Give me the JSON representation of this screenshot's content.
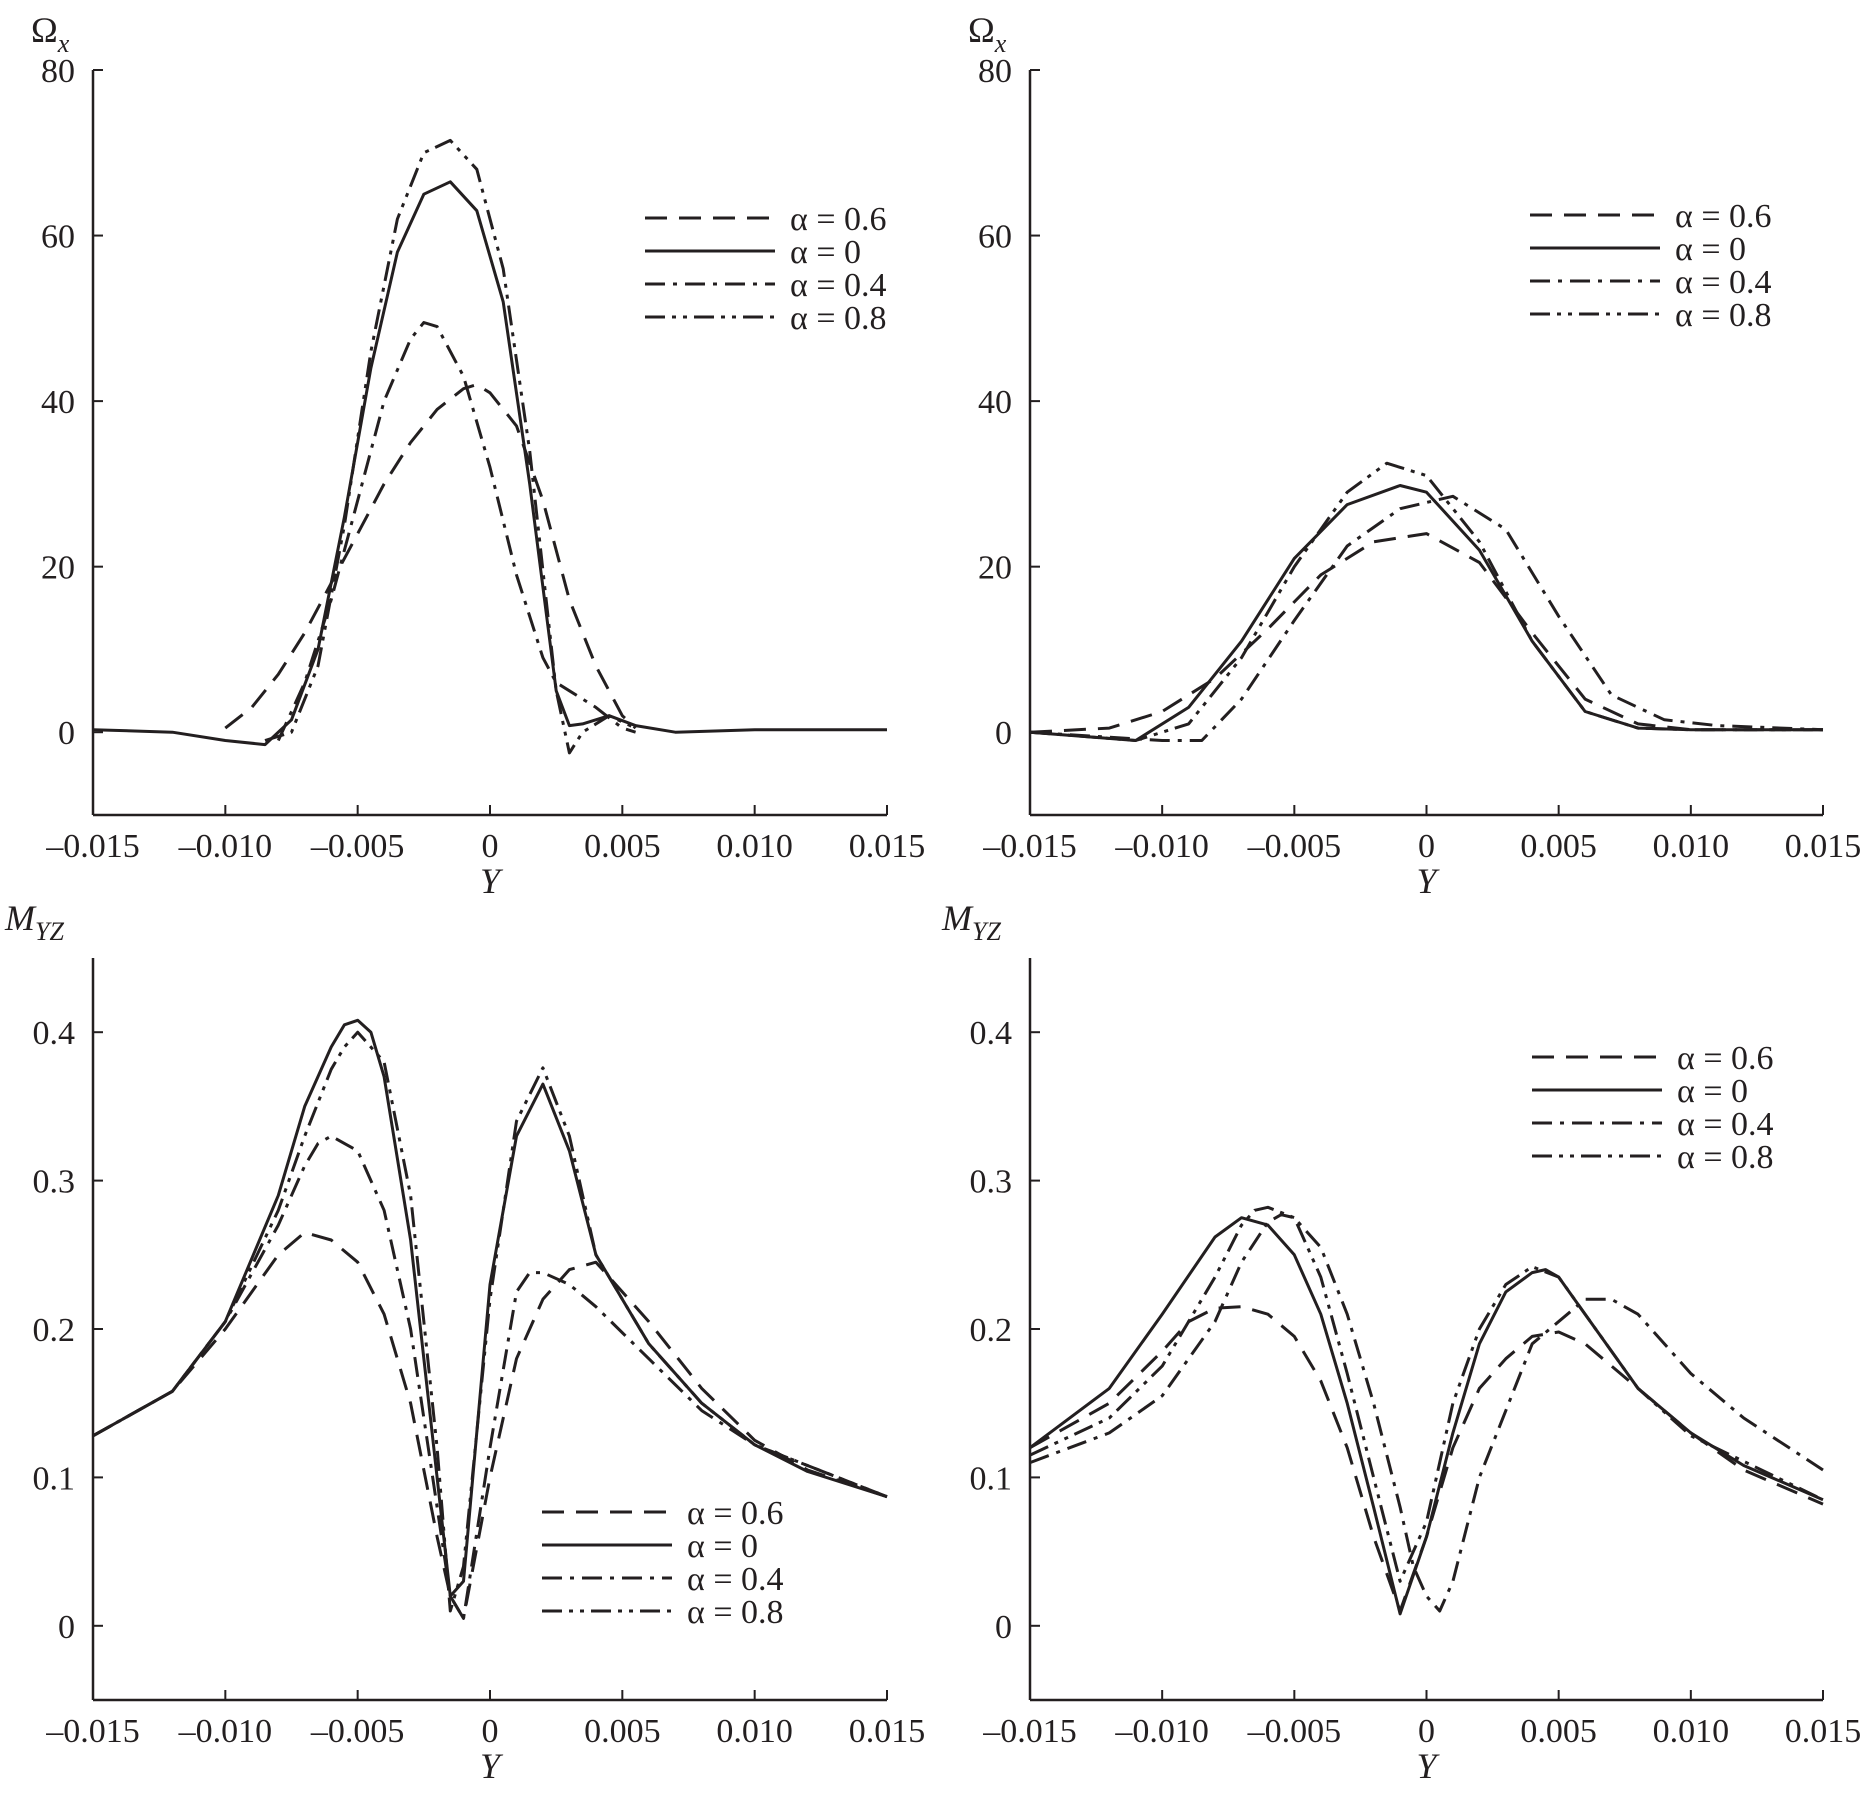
{
  "colors": {
    "ink": "#231f20",
    "background": "#ffffff"
  },
  "chart_data": [
    {
      "type": "line",
      "panel": "top-left",
      "title": "",
      "xlabel": "Y",
      "ylabel": {
        "base": "Ω",
        "sub": "x"
      },
      "xlim": [
        -0.015,
        0.015
      ],
      "ylim": [
        -10,
        80
      ],
      "xticks": [
        -0.015,
        -0.01,
        -0.005,
        0,
        0.005,
        0.01,
        0.015
      ],
      "xtick_labels": [
        "–0.015",
        "–0.010",
        "–0.005",
        "0",
        "0.005",
        "0.010",
        "0.015"
      ],
      "yticks": [
        0,
        20,
        40,
        60,
        80
      ],
      "ytick_labels": [
        "0",
        "20",
        "40",
        "60",
        "80"
      ],
      "legend_position": "top-right",
      "series": [
        {
          "name": "α = 0.6",
          "dash": "dashed",
          "x": [
            -0.01,
            -0.009,
            -0.008,
            -0.007,
            -0.006,
            -0.005,
            -0.004,
            -0.003,
            -0.002,
            -0.001,
            -0.0005,
            0.0,
            0.001,
            0.002,
            0.003,
            0.004,
            0.005,
            0.0055
          ],
          "y": [
            0.5,
            3.0,
            7.0,
            12.0,
            18.0,
            24.0,
            30.0,
            35.0,
            39.0,
            41.5,
            42.0,
            41.0,
            37.0,
            28.0,
            16.0,
            8.0,
            2.0,
            0.5
          ]
        },
        {
          "name": "α = 0",
          "dash": "solid",
          "x": [
            -0.015,
            -0.012,
            -0.01,
            -0.0085,
            -0.0075,
            -0.0065,
            -0.0055,
            -0.0045,
            -0.0035,
            -0.0025,
            -0.0015,
            -0.0005,
            0.0005,
            0.0015,
            0.0025,
            0.003,
            0.0035,
            0.0045,
            0.0055,
            0.007,
            0.01,
            0.015
          ],
          "y": [
            0.3,
            0.0,
            -1.0,
            -1.5,
            1.5,
            10.0,
            26.0,
            44.0,
            58.0,
            65.0,
            66.5,
            63.0,
            52.0,
            30.0,
            5.0,
            0.8,
            1.0,
            2.0,
            0.8,
            0.0,
            0.3,
            0.3
          ]
        },
        {
          "name": "α = 0.4",
          "dash": "dashdot",
          "x": [
            -0.008,
            -0.007,
            -0.006,
            -0.005,
            -0.004,
            -0.003,
            -0.0025,
            -0.002,
            -0.001,
            0.0,
            0.001,
            0.002,
            0.0025,
            0.003,
            0.004,
            0.005,
            0.0055
          ],
          "y": [
            -1.0,
            6.0,
            16.0,
            28.0,
            40.0,
            47.5,
            49.5,
            49.0,
            43.0,
            32.0,
            19.0,
            9.0,
            6.0,
            5.0,
            3.0,
            0.5,
            0.0
          ]
        },
        {
          "name": "α = 0.8",
          "dash": "dashdotdot",
          "x": [
            -0.0085,
            -0.0075,
            -0.0065,
            -0.0055,
            -0.0045,
            -0.0035,
            -0.0025,
            -0.0015,
            -0.0005,
            0.0005,
            0.0015,
            0.0025,
            0.003,
            0.0035,
            0.0045,
            0.0055
          ],
          "y": [
            -1.0,
            0.0,
            8.0,
            25.0,
            46.0,
            62.0,
            70.0,
            71.5,
            68.0,
            56.0,
            34.0,
            5.0,
            -2.5,
            0.0,
            2.0,
            0.5
          ]
        }
      ]
    },
    {
      "type": "line",
      "panel": "top-right",
      "title": "",
      "xlabel": "Y",
      "ylabel": {
        "base": "Ω",
        "sub": "x"
      },
      "xlim": [
        -0.015,
        0.015
      ],
      "ylim": [
        -10,
        80
      ],
      "xticks": [
        -0.015,
        -0.01,
        -0.005,
        0,
        0.005,
        0.01,
        0.015
      ],
      "xtick_labels": [
        "–0.015",
        "–0.010",
        "–0.005",
        "0",
        "0.005",
        "0.010",
        "0.015"
      ],
      "yticks": [
        0,
        20,
        40,
        60,
        80
      ],
      "ytick_labels": [
        "0",
        "20",
        "40",
        "60",
        "80"
      ],
      "legend_position": "top-right",
      "series": [
        {
          "name": "α = 0.6",
          "dash": "dashed",
          "x": [
            -0.015,
            -0.012,
            -0.01,
            -0.008,
            -0.006,
            -0.004,
            -0.002,
            0.0,
            0.002,
            0.004,
            0.006,
            0.008,
            0.01,
            0.015
          ],
          "y": [
            0.0,
            0.5,
            2.5,
            6.5,
            12.5,
            19.0,
            23.0,
            24.0,
            20.5,
            12.0,
            4.0,
            1.0,
            0.3,
            0.3
          ]
        },
        {
          "name": "α = 0",
          "dash": "solid",
          "x": [
            -0.015,
            -0.011,
            -0.009,
            -0.007,
            -0.005,
            -0.003,
            -0.001,
            0.0,
            0.002,
            0.004,
            0.006,
            0.008,
            0.01,
            0.015
          ],
          "y": [
            0.0,
            -1.0,
            3.0,
            11.0,
            21.0,
            27.5,
            29.8,
            29.0,
            22.0,
            11.0,
            2.5,
            0.5,
            0.3,
            0.3
          ]
        },
        {
          "name": "α = 0.4",
          "dash": "dashdot",
          "x": [
            -0.015,
            -0.01,
            -0.0085,
            -0.007,
            -0.005,
            -0.003,
            -0.001,
            0.001,
            0.003,
            0.005,
            0.007,
            0.009,
            0.011,
            0.015
          ],
          "y": [
            0.0,
            -1.0,
            -1.0,
            4.0,
            13.5,
            22.5,
            27.0,
            28.5,
            24.5,
            14.0,
            4.5,
            1.5,
            0.8,
            0.3
          ]
        },
        {
          "name": "α = 0.8",
          "dash": "dashdotdot",
          "x": [
            -0.015,
            -0.011,
            -0.009,
            -0.007,
            -0.005,
            -0.003,
            -0.0015,
            0.0,
            0.002,
            0.004,
            0.006,
            0.008,
            0.01,
            0.015
          ],
          "y": [
            0.0,
            -1.0,
            1.0,
            9.0,
            20.0,
            29.0,
            32.5,
            31.0,
            23.0,
            11.0,
            2.5,
            0.5,
            0.3,
            0.3
          ]
        }
      ]
    },
    {
      "type": "line",
      "panel": "bottom-left",
      "title": "",
      "xlabel": "Y",
      "ylabel": {
        "base": "M",
        "sub": "YZ"
      },
      "xlim": [
        -0.015,
        0.015
      ],
      "ylim": [
        -0.05,
        0.45
      ],
      "xticks": [
        -0.015,
        -0.01,
        -0.005,
        0,
        0.005,
        0.01,
        0.015
      ],
      "xtick_labels": [
        "–0.015",
        "–0.010",
        "–0.005",
        "0",
        "0.005",
        "0.010",
        "0.015"
      ],
      "yticks": [
        0,
        0.1,
        0.2,
        0.3,
        0.4
      ],
      "ytick_labels": [
        "0",
        "0.1",
        "0.2",
        "0.3",
        "0.4"
      ],
      "legend_position": "bottom-right",
      "series": [
        {
          "name": "α = 0.6",
          "dash": "dashed",
          "x": [
            -0.015,
            -0.012,
            -0.01,
            -0.008,
            -0.007,
            -0.006,
            -0.005,
            -0.004,
            -0.003,
            -0.002,
            -0.0015,
            -0.001,
            0.0,
            0.001,
            0.002,
            0.003,
            0.004,
            0.006,
            0.008,
            0.01,
            0.012,
            0.015
          ],
          "y": [
            0.128,
            0.158,
            0.2,
            0.25,
            0.265,
            0.26,
            0.245,
            0.21,
            0.15,
            0.06,
            0.02,
            0.005,
            0.1,
            0.18,
            0.22,
            0.24,
            0.245,
            0.205,
            0.16,
            0.125,
            0.105,
            0.087
          ]
        },
        {
          "name": "α = 0",
          "dash": "solid",
          "x": [
            -0.015,
            -0.012,
            -0.01,
            -0.008,
            -0.007,
            -0.006,
            -0.0055,
            -0.005,
            -0.0045,
            -0.004,
            -0.003,
            -0.002,
            -0.0015,
            -0.001,
            0.0,
            0.001,
            0.002,
            0.003,
            0.004,
            0.006,
            0.008,
            0.01,
            0.012,
            0.015
          ],
          "y": [
            0.128,
            0.158,
            0.205,
            0.29,
            0.35,
            0.39,
            0.405,
            0.408,
            0.4,
            0.37,
            0.26,
            0.1,
            0.02,
            0.03,
            0.23,
            0.33,
            0.365,
            0.32,
            0.25,
            0.19,
            0.15,
            0.122,
            0.104,
            0.087
          ]
        },
        {
          "name": "α = 0.4",
          "dash": "dashdot",
          "x": [
            -0.015,
            -0.012,
            -0.01,
            -0.008,
            -0.007,
            -0.0065,
            -0.006,
            -0.005,
            -0.004,
            -0.003,
            -0.002,
            -0.0015,
            -0.001,
            0.0,
            0.001,
            0.0015,
            0.002,
            0.003,
            0.004,
            0.006,
            0.008,
            0.01,
            0.015
          ],
          "y": [
            0.128,
            0.158,
            0.205,
            0.27,
            0.31,
            0.325,
            0.33,
            0.32,
            0.28,
            0.2,
            0.08,
            0.02,
            0.005,
            0.12,
            0.225,
            0.238,
            0.238,
            0.23,
            0.215,
            0.18,
            0.145,
            0.122,
            0.087
          ]
        },
        {
          "name": "α = 0.8",
          "dash": "dashdotdot",
          "x": [
            -0.015,
            -0.012,
            -0.01,
            -0.008,
            -0.007,
            -0.006,
            -0.0055,
            -0.005,
            -0.004,
            -0.003,
            -0.002,
            -0.0015,
            -0.001,
            0.0,
            0.001,
            0.002,
            0.003,
            0.004,
            0.006,
            0.008,
            0.01,
            0.015
          ],
          "y": [
            0.128,
            0.158,
            0.205,
            0.28,
            0.33,
            0.375,
            0.39,
            0.4,
            0.38,
            0.29,
            0.12,
            0.01,
            0.04,
            0.22,
            0.34,
            0.376,
            0.33,
            0.25,
            0.19,
            0.15,
            0.122,
            0.087
          ]
        }
      ]
    },
    {
      "type": "line",
      "panel": "bottom-right",
      "title": "",
      "xlabel": "Y",
      "ylabel": {
        "base": "M",
        "sub": "YZ"
      },
      "xlim": [
        -0.015,
        0.015
      ],
      "ylim": [
        -0.05,
        0.45
      ],
      "xticks": [
        -0.015,
        -0.01,
        -0.005,
        0,
        0.005,
        0.01,
        0.015
      ],
      "xtick_labels": [
        "–0.015",
        "–0.010",
        "–0.005",
        "0",
        "0.005",
        "0.010",
        "0.015"
      ],
      "yticks": [
        0,
        0.1,
        0.2,
        0.3,
        0.4
      ],
      "ytick_labels": [
        "0",
        "0.1",
        "0.2",
        "0.3",
        "0.4"
      ],
      "legend_position": "top-right",
      "series": [
        {
          "name": "α = 0.6",
          "dash": "dashed",
          "x": [
            -0.015,
            -0.012,
            -0.01,
            -0.009,
            -0.008,
            -0.007,
            -0.006,
            -0.005,
            -0.004,
            -0.003,
            -0.002,
            -0.001,
            0.0,
            0.001,
            0.002,
            0.003,
            0.004,
            0.005,
            0.006,
            0.008,
            0.01,
            0.012,
            0.015
          ],
          "y": [
            0.12,
            0.15,
            0.185,
            0.205,
            0.214,
            0.215,
            0.21,
            0.195,
            0.165,
            0.12,
            0.06,
            0.01,
            0.06,
            0.12,
            0.16,
            0.18,
            0.195,
            0.198,
            0.19,
            0.16,
            0.13,
            0.105,
            0.082
          ]
        },
        {
          "name": "α = 0",
          "dash": "solid",
          "x": [
            -0.015,
            -0.012,
            -0.01,
            -0.008,
            -0.007,
            -0.006,
            -0.005,
            -0.004,
            -0.003,
            -0.002,
            -0.001,
            0.0,
            0.001,
            0.002,
            0.003,
            0.004,
            0.0045,
            0.005,
            0.006,
            0.008,
            0.01,
            0.012,
            0.015
          ],
          "y": [
            0.12,
            0.16,
            0.21,
            0.262,
            0.275,
            0.27,
            0.25,
            0.21,
            0.15,
            0.08,
            0.008,
            0.06,
            0.13,
            0.19,
            0.225,
            0.238,
            0.24,
            0.235,
            0.21,
            0.16,
            0.13,
            0.108,
            0.085
          ]
        },
        {
          "name": "α = 0.4",
          "dash": "dashdot",
          "x": [
            -0.015,
            -0.012,
            -0.01,
            -0.008,
            -0.007,
            -0.006,
            -0.0055,
            -0.005,
            -0.004,
            -0.003,
            -0.002,
            -0.001,
            -0.0005,
            0.0,
            0.0005,
            0.001,
            0.002,
            0.004,
            0.006,
            0.007,
            0.008,
            0.01,
            0.012,
            0.015
          ],
          "y": [
            0.11,
            0.13,
            0.155,
            0.205,
            0.245,
            0.272,
            0.277,
            0.275,
            0.255,
            0.21,
            0.15,
            0.08,
            0.04,
            0.02,
            0.01,
            0.03,
            0.1,
            0.19,
            0.22,
            0.22,
            0.21,
            0.17,
            0.14,
            0.105
          ]
        },
        {
          "name": "α = 0.8",
          "dash": "dashdotdot",
          "x": [
            -0.015,
            -0.012,
            -0.01,
            -0.008,
            -0.007,
            -0.0065,
            -0.006,
            -0.005,
            -0.004,
            -0.003,
            -0.002,
            -0.001,
            0.0,
            0.001,
            0.002,
            0.003,
            0.004,
            0.005,
            0.006,
            0.008,
            0.01,
            0.015
          ],
          "y": [
            0.115,
            0.14,
            0.175,
            0.235,
            0.27,
            0.28,
            0.282,
            0.275,
            0.235,
            0.17,
            0.1,
            0.03,
            0.07,
            0.15,
            0.2,
            0.23,
            0.242,
            0.235,
            0.21,
            0.16,
            0.128,
            0.085
          ]
        }
      ]
    }
  ]
}
